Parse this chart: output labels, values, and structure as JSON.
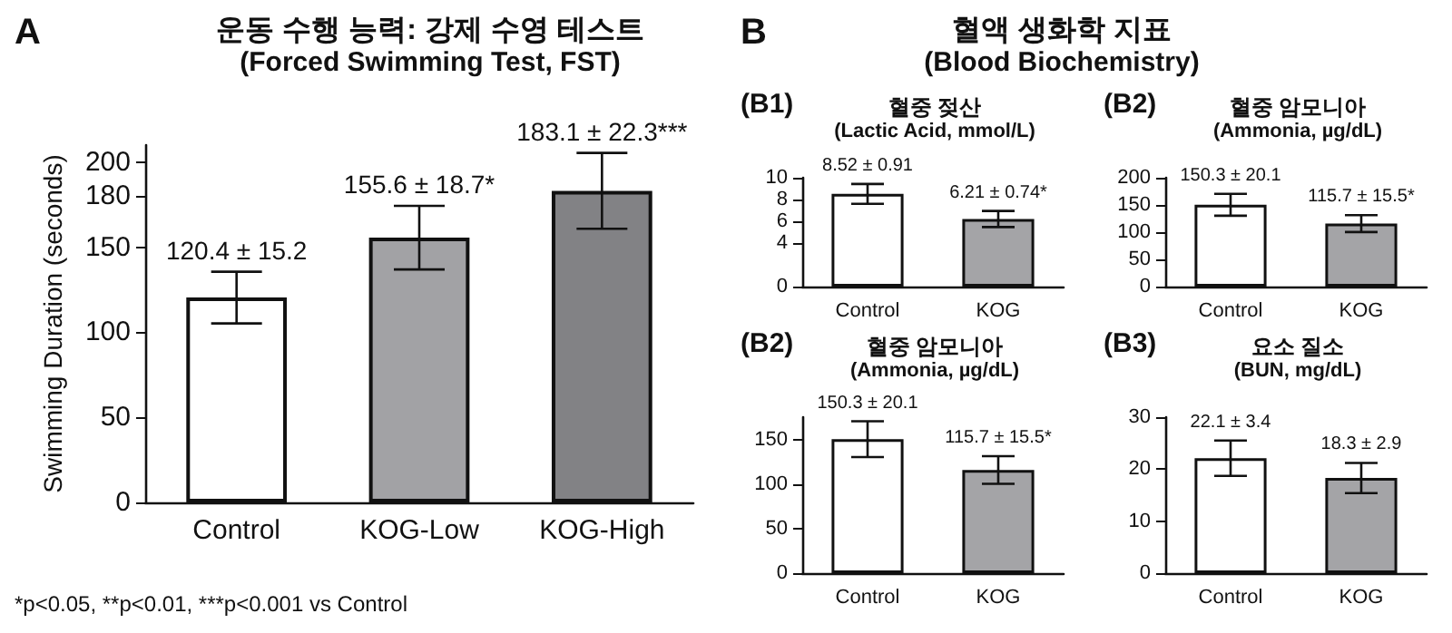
{
  "chart_data": [
    {
      "type": "bar",
      "title": "운동 수행 능력: 강제 수영 테스트",
      "subtitle": "(Forced Swimming Test, FST)",
      "ylabel": "Swimming Duration (seconds)",
      "annotations": [
        "A",
        "*p<0.05, **p<0.01, ***p<0.001 vs Control"
      ],
      "categories": [
        "Control",
        "KOG-Low",
        "KOG-High"
      ],
      "values": [
        120.4,
        155.6,
        183.1
      ],
      "colors": [
        "#ffffff",
        "#a2a2a5",
        "#828285"
      ],
      "errors": [
        15.2,
        18.7,
        22.3
      ],
      "value_labels": [
        "120.4 ± 15.2",
        "155.6 ± 18.7*",
        "183.1 ± 22.3***"
      ],
      "ylim": [
        0,
        210
      ],
      "yticks": [
        0,
        50,
        100,
        150,
        180,
        200
      ]
    },
    {
      "type": "other",
      "title": "혈액 생화학 지표",
      "subtitle": "(Blood Biochemistry)",
      "annotations": [
        "B"
      ]
    },
    {
      "type": "bar",
      "title": "혈중 젖산",
      "subtitle": "(Lactic Acid, mmol/L)",
      "annotations": [
        "(B1)"
      ],
      "categories": [
        "Control",
        "KOG"
      ],
      "values": [
        8.52,
        6.21
      ],
      "colors": [
        "#ffffff",
        "#a4a4a7"
      ],
      "errors": [
        0.91,
        0.74
      ],
      "value_labels": [
        "8.52 ± 0.91",
        "6.21 ± 0.74*"
      ],
      "ylim": [
        0,
        10
      ],
      "yticks": [
        0,
        4,
        6,
        8,
        10
      ]
    },
    {
      "type": "bar",
      "title": "혈중 암모니아",
      "subtitle": "(Ammonia, µg/dL)",
      "annotations": [
        "(B2)"
      ],
      "categories": [
        "Control",
        "KOG"
      ],
      "values": [
        150.3,
        115.7
      ],
      "colors": [
        "#ffffff",
        "#a4a4a7"
      ],
      "errors": [
        20.1,
        15.5
      ],
      "value_labels": [
        "150.3 ± 20.1",
        "115.7 ± 15.5*"
      ],
      "ylim": [
        0,
        200
      ],
      "yticks": [
        0,
        50,
        100,
        150,
        200
      ]
    },
    {
      "type": "bar",
      "title": "혈중 암모니아",
      "subtitle": "(Ammonia, µg/dL)",
      "annotations": [
        "(B2)"
      ],
      "categories": [
        "Control",
        "KOG"
      ],
      "values": [
        150.3,
        115.7
      ],
      "colors": [
        "#ffffff",
        "#a4a4a7"
      ],
      "errors": [
        20.1,
        15.5
      ],
      "value_labels": [
        "150.3 ± 20.1",
        "115.7 ± 15.5*"
      ],
      "ylim": [
        0,
        175
      ],
      "yticks": [
        0,
        50,
        100,
        150
      ]
    },
    {
      "type": "bar",
      "title": "요소 질소",
      "subtitle": "(BUN, mg/dL)",
      "annotations": [
        "(B3)"
      ],
      "categories": [
        "Control",
        "KOG"
      ],
      "values": [
        22.1,
        18.3
      ],
      "colors": [
        "#ffffff",
        "#a4a4a7"
      ],
      "errors": [
        3.4,
        2.9
      ],
      "value_labels": [
        "22.1 ± 3.4",
        "18.3 ± 2.9"
      ],
      "ylim": [
        0,
        30
      ],
      "yticks": [
        0,
        10,
        20,
        30
      ]
    }
  ]
}
